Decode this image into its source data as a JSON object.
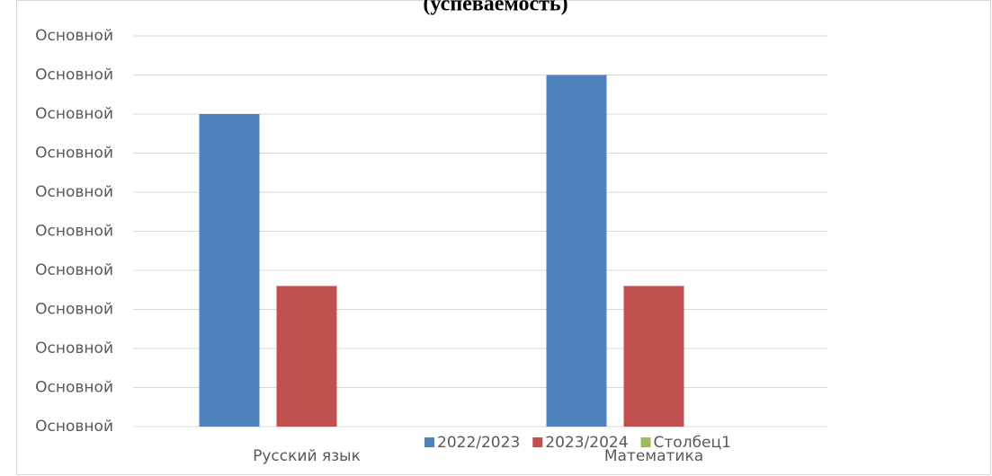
{
  "chart_data": {
    "type": "bar",
    "title": "(успеваемость)",
    "categories": [
      "Русский язык",
      "Математика"
    ],
    "series": [
      {
        "name": "2022/2023",
        "color": "#4f81bd",
        "values": [
          8,
          9
        ]
      },
      {
        "name": "2023/2024",
        "color": "#c0504d",
        "values": [
          3.6,
          3.6
        ]
      },
      {
        "name": "Столбец1",
        "color": "#9bbb59",
        "values": [
          null,
          null
        ]
      }
    ],
    "ylim": [
      0,
      10
    ],
    "yticks": [
      {
        "value": 0,
        "label": "Основной"
      },
      {
        "value": 1,
        "label": "Основной"
      },
      {
        "value": 2,
        "label": "Основной"
      },
      {
        "value": 3,
        "label": "Основной"
      },
      {
        "value": 4,
        "label": "Основной"
      },
      {
        "value": 5,
        "label": "Основной"
      },
      {
        "value": 6,
        "label": "Основной"
      },
      {
        "value": 7,
        "label": "Основной"
      },
      {
        "value": 8,
        "label": "Основной"
      },
      {
        "value": 9,
        "label": "Основной"
      },
      {
        "value": 10,
        "label": "Основной"
      }
    ],
    "grid": true,
    "legend": "bottom"
  }
}
